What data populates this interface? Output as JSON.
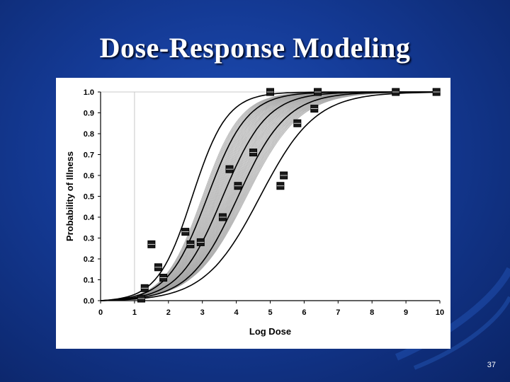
{
  "slide": {
    "title": "Dose-Response Modeling",
    "page_number": "37"
  },
  "colors": {
    "background": "#143a95",
    "panel": "#ffffff",
    "curve_black": "#000000",
    "curve_gray": "#a0a0a0"
  },
  "chart_data": {
    "type": "line",
    "xlabel": "Log Dose",
    "ylabel": "Probability of Illness",
    "xlim": [
      0,
      10
    ],
    "ylim": [
      0,
      1
    ],
    "x_ticks": [
      "0",
      "1",
      "2",
      "3",
      "4",
      "5",
      "6",
      "7",
      "8",
      "9",
      "10"
    ],
    "y_ticks": [
      "0.0",
      "0.1",
      "0.2",
      "0.3",
      "0.4",
      "0.5",
      "0.6",
      "0.7",
      "0.8",
      "0.9",
      "1.0"
    ],
    "grid": "x=1 and y=1 only",
    "legend": "none",
    "black_curves": [
      {
        "x0": 2.7,
        "slope": 1.15
      },
      {
        "x0": 3.15,
        "slope": 1.0
      },
      {
        "x0": 3.6,
        "slope": 0.9
      },
      {
        "x0": 4.05,
        "slope": 0.82
      },
      {
        "x0": 4.7,
        "slope": 0.72
      }
    ],
    "gray_band": {
      "x0_range": [
        3.0,
        4.3
      ],
      "slope_range": [
        0.75,
        1.05
      ],
      "count": 60
    },
    "points": [
      {
        "x": 1.2,
        "y": 0.01
      },
      {
        "x": 1.3,
        "y": 0.06
      },
      {
        "x": 1.5,
        "y": 0.27
      },
      {
        "x": 1.7,
        "y": 0.16
      },
      {
        "x": 1.85,
        "y": 0.11
      },
      {
        "x": 2.5,
        "y": 0.33
      },
      {
        "x": 2.65,
        "y": 0.27
      },
      {
        "x": 2.95,
        "y": 0.28
      },
      {
        "x": 3.6,
        "y": 0.4
      },
      {
        "x": 3.8,
        "y": 0.63
      },
      {
        "x": 4.05,
        "y": 0.55
      },
      {
        "x": 4.5,
        "y": 0.71
      },
      {
        "x": 5.0,
        "y": 1.0
      },
      {
        "x": 5.3,
        "y": 0.55
      },
      {
        "x": 5.4,
        "y": 0.6
      },
      {
        "x": 5.8,
        "y": 0.85
      },
      {
        "x": 6.3,
        "y": 0.92
      },
      {
        "x": 6.4,
        "y": 1.0
      },
      {
        "x": 8.7,
        "y": 1.0
      },
      {
        "x": 9.9,
        "y": 1.0
      }
    ]
  }
}
